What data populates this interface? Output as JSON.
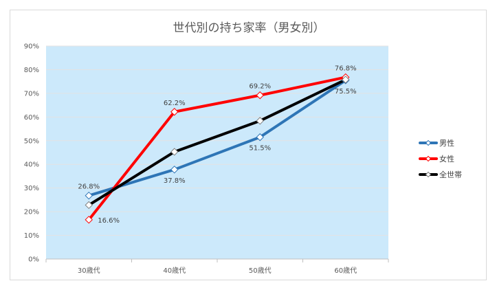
{
  "chart_data": {
    "type": "line",
    "title": "世代別の持ち家率（男女別）",
    "categories": [
      "30歳代",
      "40歳代",
      "50歳代",
      "60歳代"
    ],
    "y_ticks": [
      "0%",
      "10%",
      "20%",
      "30%",
      "40%",
      "50%",
      "60%",
      "70%",
      "80%",
      "90%"
    ],
    "ylim": [
      0,
      90
    ],
    "plot_background": "#cce9fb",
    "series": [
      {
        "name": "男性",
        "color": "#2e75b6",
        "values": [
          26.8,
          37.8,
          51.5,
          75.5
        ],
        "labels": [
          "26.8%",
          "37.8%",
          "51.5%",
          "75.5%"
        ],
        "label_positions": [
          "above",
          "below",
          "below",
          "below"
        ]
      },
      {
        "name": "女性",
        "color": "#ff0000",
        "values": [
          16.6,
          62.2,
          69.2,
          76.8
        ],
        "labels": [
          "16.6%",
          "62.2%",
          "69.2%",
          "76.8%"
        ],
        "label_positions": [
          "right",
          "above",
          "above",
          "above"
        ]
      },
      {
        "name": "全世帯",
        "color": "#000000",
        "values": [
          22.8,
          45.3,
          58.4,
          75.8
        ],
        "labels": [],
        "label_positions": []
      }
    ],
    "legend_position": "right"
  }
}
